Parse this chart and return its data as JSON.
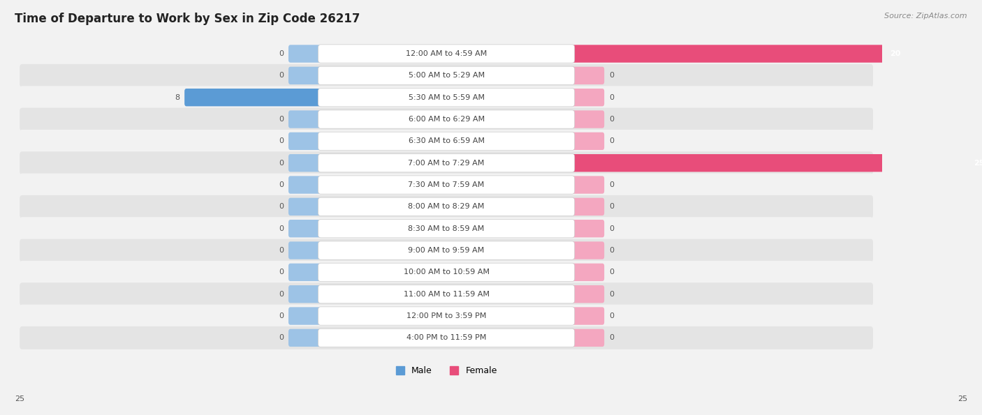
{
  "title": "Time of Departure to Work by Sex in Zip Code 26217",
  "source": "Source: ZipAtlas.com",
  "categories": [
    "12:00 AM to 4:59 AM",
    "5:00 AM to 5:29 AM",
    "5:30 AM to 5:59 AM",
    "6:00 AM to 6:29 AM",
    "6:30 AM to 6:59 AM",
    "7:00 AM to 7:29 AM",
    "7:30 AM to 7:59 AM",
    "8:00 AM to 8:29 AM",
    "8:30 AM to 8:59 AM",
    "9:00 AM to 9:59 AM",
    "10:00 AM to 10:59 AM",
    "11:00 AM to 11:59 AM",
    "12:00 PM to 3:59 PM",
    "4:00 PM to 11:59 PM"
  ],
  "male_values": [
    0,
    0,
    8,
    0,
    0,
    0,
    0,
    0,
    0,
    0,
    0,
    0,
    0,
    0
  ],
  "female_values": [
    20,
    0,
    0,
    0,
    0,
    25,
    0,
    0,
    0,
    0,
    0,
    0,
    0,
    0
  ],
  "male_color_dark": "#5b9bd5",
  "male_color_light": "#9dc3e6",
  "female_color_dark": "#e84d7a",
  "female_color_light": "#f4a7c0",
  "axis_max": 25,
  "row_bg_light": "#f2f2f2",
  "row_bg_dark": "#e4e4e4",
  "title_fontsize": 12,
  "label_fontsize": 8,
  "value_fontsize": 8,
  "legend_fontsize": 9,
  "source_fontsize": 8
}
